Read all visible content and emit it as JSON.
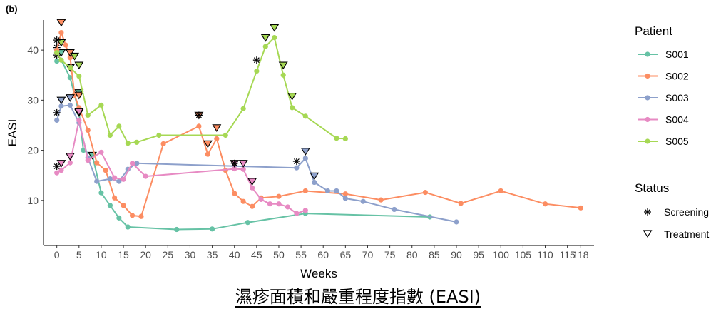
{
  "panel_tag": "(b)",
  "caption": "濕疹面積和嚴重程度指數 (EASI)",
  "chart_data": {
    "type": "line",
    "xlabel": "Weeks",
    "ylabel": "EASI",
    "xlim": [
      -3,
      121
    ],
    "ylim": [
      1,
      46
    ],
    "x_ticks": [
      0,
      5,
      10,
      15,
      20,
      25,
      30,
      35,
      40,
      45,
      50,
      55,
      60,
      65,
      70,
      75,
      80,
      85,
      90,
      95,
      100,
      105,
      110,
      115,
      118
    ],
    "x_tick_labels": [
      "0",
      "5",
      "10",
      "15",
      "20",
      "25",
      "30",
      "35",
      "40",
      "45",
      "50",
      "55",
      "60",
      "65",
      "70",
      "75",
      "80",
      "85",
      "90",
      "95",
      "100",
      "105",
      "110",
      "115",
      "118"
    ],
    "y_ticks": [
      10,
      20,
      30,
      40
    ],
    "grid": false,
    "legend": {
      "placement": "right",
      "patient_title": "Patient",
      "status_title": "Status",
      "status_items": [
        {
          "name": "Screening",
          "symbol": "asterisk"
        },
        {
          "name": "Treatment",
          "symbol": "triangle-down"
        }
      ]
    },
    "series": [
      {
        "name": "S001",
        "color": "#66C2A5",
        "x": [
          0,
          1,
          3,
          5,
          6,
          8,
          10,
          12,
          14,
          16,
          27,
          35,
          43,
          56,
          84
        ],
        "y": [
          37.8,
          38.0,
          34.5,
          27.5,
          20.0,
          19.0,
          11.5,
          9.0,
          6.5,
          4.7,
          4.2,
          4.3,
          5.6,
          7.4,
          6.7
        ],
        "screening": [
          {
            "x": 0,
            "y": 40.5
          }
        ],
        "treatment": [
          {
            "x": 1,
            "y": 39.5
          },
          {
            "x": 3,
            "y": 36.5
          },
          {
            "x": 5,
            "y": 31.5
          },
          {
            "x": 8,
            "y": 19.0
          }
        ]
      },
      {
        "name": "S002",
        "color": "#FC8D62",
        "x": [
          0,
          1,
          2,
          3,
          4,
          5,
          7,
          9,
          11,
          13,
          15,
          17,
          19,
          24,
          32,
          34,
          36,
          38,
          40,
          42,
          44,
          46,
          50,
          56,
          65,
          73,
          83,
          91,
          100,
          110,
          118
        ],
        "y": [
          40.0,
          43.5,
          41.0,
          38.5,
          31.0,
          28.5,
          24.0,
          17.5,
          16.0,
          10.5,
          9.0,
          7.0,
          6.8,
          21.3,
          24.8,
          19.2,
          22.3,
          16.0,
          11.4,
          9.8,
          8.8,
          10.5,
          10.8,
          11.9,
          11.3,
          10.1,
          11.6,
          9.4,
          11.9,
          9.3,
          8.5
        ],
        "screening": [
          {
            "x": 0,
            "y": 39.0
          },
          {
            "x": 32,
            "y": 27.0
          }
        ],
        "treatment": [
          {
            "x": 1,
            "y": 45.5
          },
          {
            "x": 3,
            "y": 39.5
          },
          {
            "x": 5,
            "y": 31.0
          },
          {
            "x": 32,
            "y": 27.0
          },
          {
            "x": 34,
            "y": 21.3
          },
          {
            "x": 36,
            "y": 24.5
          }
        ]
      },
      {
        "name": "S003",
        "color": "#8DA0CB",
        "x": [
          0,
          1,
          3,
          5,
          7,
          9,
          12,
          14,
          16,
          18,
          54,
          56,
          58,
          61,
          63,
          65,
          69,
          76,
          90
        ],
        "y": [
          26.0,
          28.8,
          29.0,
          25.5,
          18.5,
          13.8,
          14.3,
          13.8,
          16.2,
          17.4,
          16.5,
          18.4,
          13.6,
          11.9,
          11.9,
          10.4,
          9.8,
          8.2,
          5.7
        ],
        "screening": [
          {
            "x": 0,
            "y": 27.5
          },
          {
            "x": 54,
            "y": 17.8
          }
        ],
        "treatment": [
          {
            "x": 1,
            "y": 30.0
          },
          {
            "x": 3,
            "y": 30.5
          },
          {
            "x": 5,
            "y": 27.5
          },
          {
            "x": 56,
            "y": 19.8
          },
          {
            "x": 58,
            "y": 14.9
          }
        ]
      },
      {
        "name": "S004",
        "color": "#E78AC3",
        "x": [
          0,
          1,
          3,
          5,
          7,
          10,
          13,
          15,
          17,
          20,
          40,
          42,
          44,
          46,
          48,
          50,
          52,
          54,
          56
        ],
        "y": [
          15.5,
          16.0,
          17.5,
          26.0,
          18.0,
          19.6,
          14.5,
          14.2,
          17.4,
          14.8,
          16.3,
          16.2,
          12.5,
          10.2,
          9.3,
          9.3,
          8.7,
          7.4,
          8.0
        ],
        "screening": [
          {
            "x": 0,
            "y": 16.8
          },
          {
            "x": 40,
            "y": 17.4
          }
        ],
        "treatment": [
          {
            "x": 1,
            "y": 17.4
          },
          {
            "x": 3,
            "y": 18.8
          },
          {
            "x": 5,
            "y": 27.7
          },
          {
            "x": 40,
            "y": 17.4
          },
          {
            "x": 42,
            "y": 17.4
          },
          {
            "x": 44,
            "y": 13.8
          }
        ]
      },
      {
        "name": "S005",
        "color": "#A6D854",
        "x": [
          0,
          1,
          3,
          5,
          7,
          10,
          12,
          14,
          16,
          18,
          23,
          38,
          42,
          45,
          47,
          49,
          51,
          53,
          56,
          63,
          65
        ],
        "y": [
          39.5,
          38.0,
          36.5,
          34.8,
          27.0,
          29.0,
          23.0,
          24.8,
          21.4,
          21.6,
          23.0,
          23.0,
          28.3,
          35.8,
          40.7,
          42.5,
          35.0,
          28.5,
          26.8,
          22.4,
          22.3
        ],
        "screening": [
          {
            "x": 0,
            "y": 42.0
          },
          {
            "x": 45,
            "y": 38.0
          }
        ],
        "treatment": [
          {
            "x": 1,
            "y": 41.5
          },
          {
            "x": 4,
            "y": 38.8
          },
          {
            "x": 5,
            "y": 37.0
          },
          {
            "x": 47,
            "y": 42.5
          },
          {
            "x": 49,
            "y": 44.5
          },
          {
            "x": 51,
            "y": 37.0
          },
          {
            "x": 53,
            "y": 30.8
          }
        ]
      }
    ]
  }
}
